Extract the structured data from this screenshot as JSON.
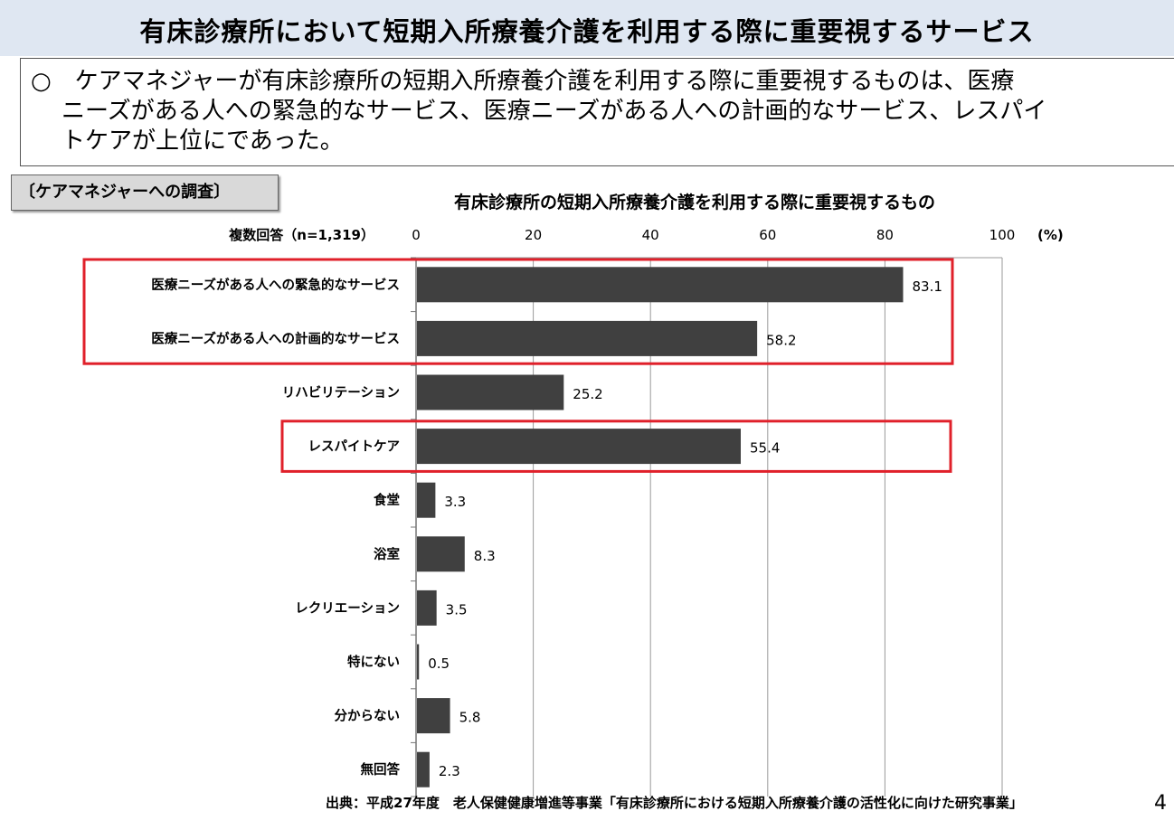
{
  "page": {
    "title": "有床診療所において短期入所療養介護を利用する際に重要視するサービス",
    "summary": "○　ケアマネジャーが有床診療所の短期入所療養介護を利用する際に重要視するものは、医療ニーズがある人への緊急的なサービス、医療ニーズがある人への計画的なサービス、レスパイトケアが上位にであった。",
    "summary_lines": [
      "○　ケアマネジャーが有床診療所の短期入所療養介護を利用する際に重要視するものは、医療",
      "ニーズがある人への緊急的なサービス、医療ニーズがある人への計画的なサービス、レスパイ",
      "トケアが上位にであった。"
    ],
    "survey_label": "〔ケアマネジャーへの調査〕",
    "source": "出典：平成27年度　老人保健健康増進等事業「有床診療所における短期入所療養介護の活性化に向けた研究事業」",
    "page_number": "4"
  },
  "colors": {
    "bar": "#404040",
    "highlight_border": "#e0202a",
    "grid": "#999999",
    "header_band": "#dfe7f2"
  },
  "chart_data": {
    "type": "bar",
    "orientation": "horizontal",
    "title": "有床診療所の短期入所療養介護を利用する際に重要視するもの",
    "response_note": "複数回答（n=1,319）",
    "unit_label": "(%)",
    "xlim": [
      0,
      100
    ],
    "xticks": [
      "0",
      "20",
      "40",
      "60",
      "80",
      "100"
    ],
    "grid": true,
    "categories": [
      "医療ニーズがある人への緊急的なサービス",
      "医療ニーズがある人への計画的なサービス",
      "リハビリテーション",
      "レスパイトケア",
      "食堂",
      "浴室",
      "レクリエーション",
      "特にない",
      "分からない",
      "無回答"
    ],
    "values": [
      83.1,
      58.2,
      25.2,
      55.4,
      3.3,
      8.3,
      3.5,
      0.5,
      5.8,
      2.3
    ],
    "value_labels": [
      "83.1",
      "58.2",
      "25.2",
      "55.4",
      "3.3",
      "8.3",
      "3.5",
      "0.5",
      "5.8",
      "2.3"
    ],
    "highlight_groups": [
      [
        0,
        1
      ],
      [
        3
      ]
    ]
  }
}
